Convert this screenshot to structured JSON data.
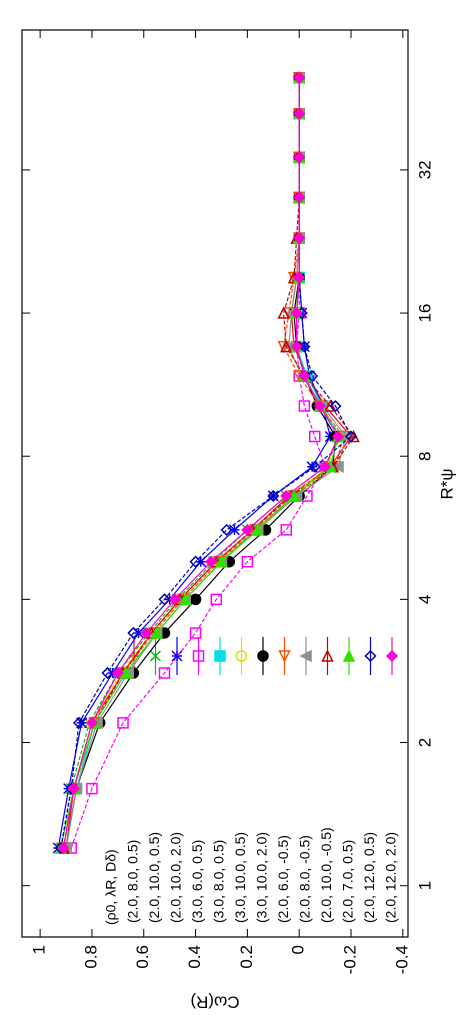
{
  "chart_data": {
    "type": "line",
    "xlabel": "R*ψ",
    "ylabel": "Cω(R)",
    "legend_title": "(ρ0, λR, Dδ)",
    "xlog": true,
    "xlog_base": 2,
    "legend": "lower left",
    "xlim": [
      0.78,
      63
    ],
    "ylim": [
      -0.42,
      1.07
    ],
    "xticks": [
      1,
      2,
      4,
      8,
      16,
      32
    ],
    "yticks": [
      1,
      0.8,
      0.6,
      0.4,
      0.2,
      0,
      -0.2,
      -0.4
    ],
    "x": [
      1.2,
      1.6,
      2.2,
      2.8,
      3.4,
      4.0,
      4.8,
      5.6,
      6.6,
      7.6,
      8.8,
      10.2,
      11.8,
      13.6,
      16,
      19,
      23,
      28,
      34,
      42,
      50
    ],
    "series": [
      {
        "name": "(2.0, 8.0, 0.5)",
        "color": "#ff0000",
        "marker": "plus",
        "values": [
          0.9,
          0.87,
          0.8,
          0.68,
          0.57,
          0.46,
          0.32,
          0.18,
          0.04,
          -0.12,
          -0.2,
          -0.1,
          -0.03,
          0.02,
          0.03,
          0.01,
          0,
          0,
          0,
          0,
          0
        ]
      },
      {
        "name": "(2.0, 10.0, 0.5)",
        "color": "#00c000",
        "marker": "cross",
        "values": [
          0.92,
          0.88,
          0.81,
          0.7,
          0.58,
          0.47,
          0.33,
          0.2,
          0.05,
          -0.1,
          -0.16,
          -0.08,
          -0.02,
          0.01,
          0.01,
          0,
          0,
          0,
          0,
          0,
          0
        ]
      },
      {
        "name": "(2.0, 10.0, 2.0)",
        "color": "#0000ff",
        "marker": "star",
        "values": [
          0.93,
          0.89,
          0.84,
          0.72,
          0.62,
          0.5,
          0.38,
          0.25,
          0.1,
          -0.05,
          -0.12,
          -0.09,
          -0.04,
          -0.02,
          -0.01,
          0,
          0,
          0,
          0,
          0,
          0
        ]
      },
      {
        "name": "(3.0, 6.0, 0.5)",
        "color": "#ff00ff",
        "marker": "square-open",
        "values": [
          0.88,
          0.8,
          0.68,
          0.52,
          0.4,
          0.32,
          0.2,
          0.05,
          -0.03,
          -0.1,
          -0.06,
          -0.02,
          0,
          0.01,
          0,
          0,
          0,
          0,
          0,
          0,
          0
        ]
      },
      {
        "name": "(3.0, 8.0, 0.5)",
        "color": "#00e0e0",
        "marker": "square",
        "values": [
          0.9,
          0.86,
          0.79,
          0.67,
          0.55,
          0.44,
          0.3,
          0.17,
          0.02,
          -0.12,
          -0.15,
          -0.09,
          -0.03,
          0.01,
          0.01,
          0,
          0,
          0,
          0,
          0,
          0
        ]
      },
      {
        "name": "(3.0, 10.0, 0.5)",
        "color": "#e0e000",
        "marker": "circle-open",
        "values": [
          0.91,
          0.87,
          0.8,
          0.69,
          0.57,
          0.45,
          0.31,
          0.18,
          0.03,
          -0.11,
          -0.15,
          -0.08,
          -0.02,
          0.01,
          0.01,
          0,
          0,
          0,
          0,
          0,
          0
        ]
      },
      {
        "name": "(3.0, 10.0, 2.0)",
        "color": "#000000",
        "marker": "circle",
        "values": [
          0.9,
          0.86,
          0.77,
          0.64,
          0.52,
          0.4,
          0.27,
          0.13,
          0,
          -0.13,
          -0.14,
          -0.07,
          -0.02,
          0.01,
          0.02,
          0,
          0,
          0,
          0,
          0,
          0
        ]
      },
      {
        "name": "(2.0, 6.0, -0.5)",
        "color": "#ff5000",
        "marker": "triangle-left-open",
        "values": [
          0.91,
          0.87,
          0.79,
          0.68,
          0.56,
          0.45,
          0.31,
          0.17,
          0.02,
          -0.14,
          -0.17,
          -0.08,
          0,
          0.06,
          0.04,
          0.02,
          0,
          0,
          0,
          0,
          0
        ]
      },
      {
        "name": "(2.0, 8.0, -0.5)",
        "color": "#909090",
        "marker": "triangle-up",
        "values": [
          0.9,
          0.86,
          0.78,
          0.66,
          0.55,
          0.44,
          0.3,
          0.16,
          0.01,
          -0.15,
          -0.18,
          -0.09,
          -0.01,
          0.04,
          0.03,
          0.01,
          0,
          0,
          0,
          0,
          0
        ]
      },
      {
        "name": "(2.0, 10.0, -0.5)",
        "color": "#c00000",
        "marker": "triangle-right-open",
        "values": [
          0.91,
          0.87,
          0.79,
          0.68,
          0.57,
          0.46,
          0.32,
          0.18,
          0.03,
          -0.13,
          -0.21,
          -0.12,
          -0.02,
          0.05,
          0.06,
          0.02,
          0.01,
          0,
          0,
          0,
          0
        ]
      },
      {
        "name": "(2.0, 7.0, 0.5)",
        "color": "#30e000",
        "marker": "triangle-right",
        "values": [
          0.92,
          0.87,
          0.79,
          0.67,
          0.55,
          0.44,
          0.3,
          0.16,
          0.02,
          -0.12,
          -0.15,
          -0.08,
          -0.02,
          0.01,
          0.01,
          0,
          0,
          0,
          0,
          0,
          0
        ]
      },
      {
        "name": "(2.0, 12.0, 0.5)",
        "color": "#0000b0",
        "marker": "diamond-open",
        "values": [
          0.92,
          0.88,
          0.85,
          0.74,
          0.64,
          0.52,
          0.4,
          0.28,
          0.1,
          -0.06,
          -0.2,
          -0.14,
          -0.05,
          -0.02,
          -0.01,
          0,
          0,
          0,
          0,
          0,
          0
        ]
      },
      {
        "name": "(2.0, 12.0, 2.0)",
        "color": "#ff00d0",
        "marker": "diamond",
        "values": [
          0.91,
          0.87,
          0.8,
          0.7,
          0.59,
          0.48,
          0.34,
          0.2,
          0.05,
          -0.1,
          -0.15,
          -0.08,
          -0.02,
          0.01,
          0.01,
          0,
          0,
          0,
          0,
          0,
          0
        ]
      }
    ]
  }
}
